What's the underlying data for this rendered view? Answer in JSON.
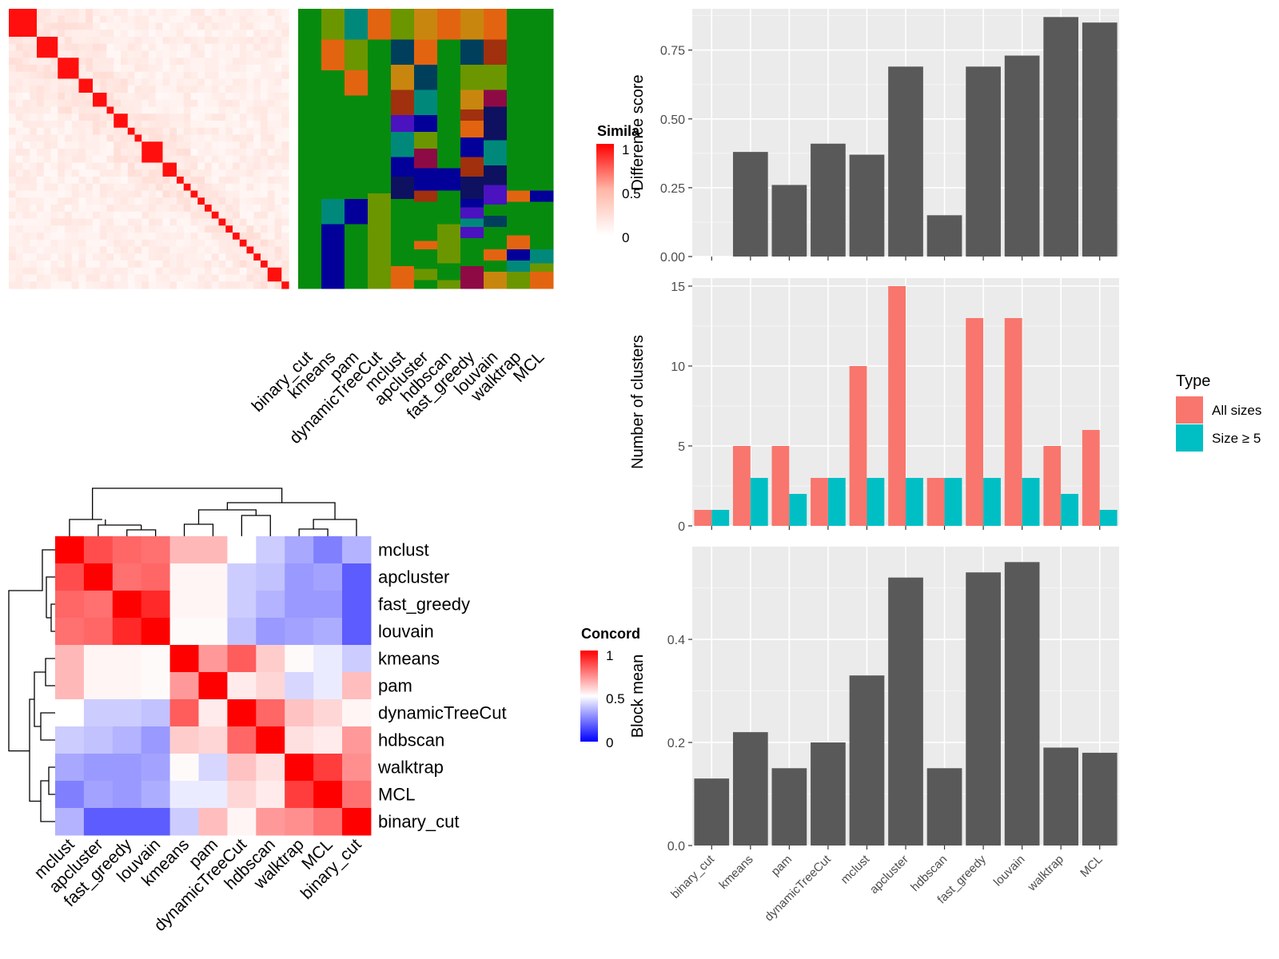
{
  "methods": [
    "binary_cut",
    "kmeans",
    "pam",
    "dynamicTreeCut",
    "mclust",
    "apcluster",
    "hdbscan",
    "fast_greedy",
    "louvain",
    "walktrap",
    "MCL"
  ],
  "similarity_heatmap": {
    "legend_title": "Simila",
    "legend_ticks": [
      "1",
      "0.5",
      "0"
    ],
    "column_labels": [
      "binary_cut",
      "kmeans",
      "pam",
      "dynamicTreeCut",
      "mclust",
      "apcluster",
      "hdbscan",
      "fast_greedy",
      "louvain",
      "walktrap",
      "MCL"
    ],
    "block_sizes": [
      4,
      3,
      3,
      2,
      2,
      1,
      2,
      1,
      1,
      3,
      2,
      1,
      1,
      1,
      1,
      1,
      1,
      1,
      1,
      1,
      1,
      1,
      1,
      1,
      2,
      1
    ],
    "colors": {
      "low": "#FFFFFF",
      "mid": "#FFB6A6",
      "high": "#FF0000",
      "green": "#078B0E",
      "olive": "#6B9600",
      "teal": "#00897B",
      "orange": "#E36410",
      "amber": "#C8860E",
      "navy": "#003F5C",
      "blue": "#03009A",
      "darknavy": "#0D1160",
      "brown": "#A0300E",
      "purple": "#4B12BF",
      "maroon": "#8E0A45"
    }
  },
  "concordance_heatmap": {
    "legend_title": "Concord",
    "legend_ticks": [
      "1",
      "0.5",
      "0"
    ],
    "order": [
      "mclust",
      "apcluster",
      "fast_greedy",
      "louvain",
      "kmeans",
      "pam",
      "dynamicTreeCut",
      "hdbscan",
      "walktrap",
      "MCL",
      "binary_cut"
    ],
    "matrix": [
      [
        1.0,
        0.85,
        0.8,
        0.78,
        0.64,
        0.64,
        0.5,
        0.4,
        0.33,
        0.25,
        0.35
      ],
      [
        0.85,
        1.0,
        0.78,
        0.8,
        0.52,
        0.52,
        0.4,
        0.38,
        0.3,
        0.32,
        0.18
      ],
      [
        0.8,
        0.78,
        1.0,
        0.92,
        0.52,
        0.52,
        0.4,
        0.35,
        0.3,
        0.3,
        0.18
      ],
      [
        0.78,
        0.8,
        0.92,
        1.0,
        0.51,
        0.51,
        0.38,
        0.3,
        0.32,
        0.34,
        0.18
      ],
      [
        0.64,
        0.52,
        0.52,
        0.51,
        1.0,
        0.7,
        0.82,
        0.6,
        0.51,
        0.46,
        0.4
      ],
      [
        0.64,
        0.52,
        0.52,
        0.51,
        0.7,
        1.0,
        0.54,
        0.58,
        0.42,
        0.46,
        0.63
      ],
      [
        0.5,
        0.4,
        0.4,
        0.38,
        0.82,
        0.54,
        1.0,
        0.8,
        0.62,
        0.58,
        0.52
      ],
      [
        0.4,
        0.38,
        0.35,
        0.3,
        0.6,
        0.58,
        0.8,
        1.0,
        0.56,
        0.54,
        0.7
      ],
      [
        0.33,
        0.3,
        0.3,
        0.32,
        0.51,
        0.42,
        0.62,
        0.56,
        1.0,
        0.88,
        0.72
      ],
      [
        0.25,
        0.32,
        0.3,
        0.34,
        0.46,
        0.46,
        0.58,
        0.54,
        0.88,
        1.0,
        0.78
      ],
      [
        0.35,
        0.18,
        0.18,
        0.18,
        0.4,
        0.63,
        0.52,
        0.7,
        0.72,
        0.78,
        1.0
      ]
    ],
    "colors": {
      "low": "#0000FF",
      "mid": "#FFFFFF",
      "high": "#FF0000"
    }
  },
  "chart_data": [
    {
      "type": "bar",
      "categories": [
        "binary_cut",
        "kmeans",
        "pam",
        "dynamicTreeCut",
        "mclust",
        "apcluster",
        "hdbscan",
        "fast_greedy",
        "louvain",
        "walktrap",
        "MCL"
      ],
      "values": [
        0.0,
        0.38,
        0.26,
        0.41,
        0.37,
        0.69,
        0.15,
        0.69,
        0.73,
        0.87,
        0.85
      ],
      "ylabel": "Difference score",
      "ylim": [
        0,
        0.9
      ],
      "yticks": [
        "0.00",
        "0.25",
        "0.50",
        "0.75"
      ],
      "grid": true,
      "bar_color": "#595959"
    },
    {
      "type": "bar",
      "categories": [
        "binary_cut",
        "kmeans",
        "pam",
        "dynamicTreeCut",
        "mclust",
        "apcluster",
        "hdbscan",
        "fast_greedy",
        "louvain",
        "walktrap",
        "MCL"
      ],
      "series": [
        {
          "name": "All sizes",
          "values": [
            1,
            5,
            5,
            3,
            10,
            15,
            3,
            13,
            13,
            5,
            6
          ],
          "color": "#F8766D"
        },
        {
          "name": "Size ≥ 5",
          "values": [
            1,
            3,
            2,
            3,
            3,
            3,
            3,
            3,
            3,
            2,
            1
          ],
          "color": "#00BFC4"
        }
      ],
      "ylabel": "Number of clusters",
      "ylim": [
        0,
        15.5
      ],
      "yticks": [
        "0",
        "5",
        "10",
        "15"
      ],
      "legend_title": "Type",
      "legend_position": "right",
      "grid": true
    },
    {
      "type": "bar",
      "categories": [
        "binary_cut",
        "kmeans",
        "pam",
        "dynamicTreeCut",
        "mclust",
        "apcluster",
        "hdbscan",
        "fast_greedy",
        "louvain",
        "walktrap",
        "MCL"
      ],
      "values": [
        0.13,
        0.22,
        0.15,
        0.2,
        0.33,
        0.52,
        0.15,
        0.53,
        0.55,
        0.19,
        0.18
      ],
      "ylabel": "Block mean",
      "ylim": [
        0,
        0.58
      ],
      "yticks": [
        "0.0",
        "0.2",
        "0.4"
      ],
      "grid": true,
      "bar_color": "#595959"
    }
  ]
}
